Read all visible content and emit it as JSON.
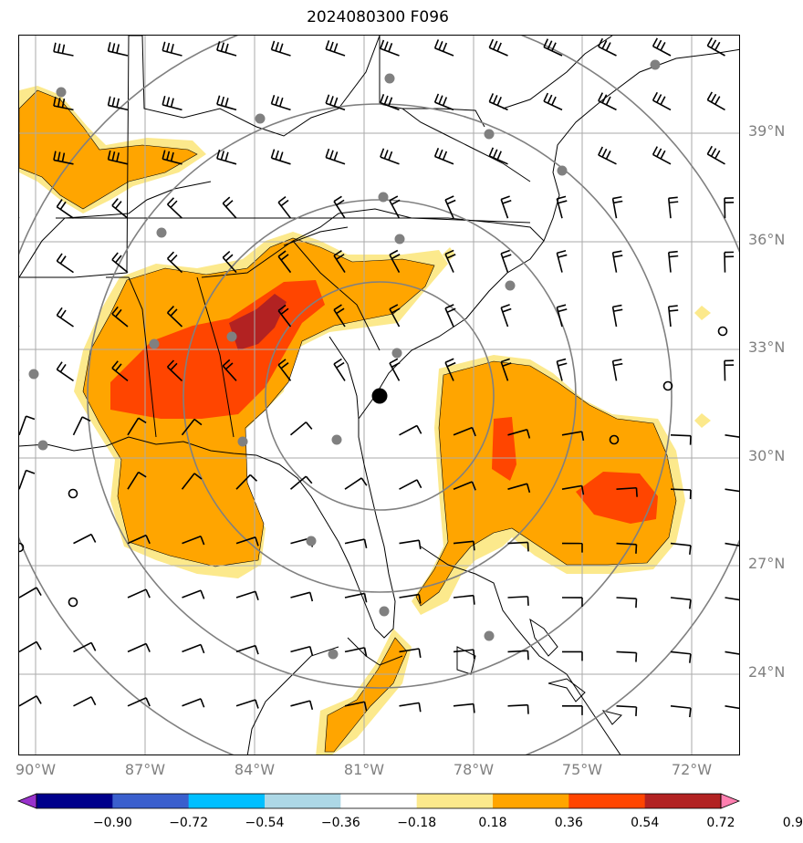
{
  "title": "2024080300 F096",
  "lat_labels": [
    "39°N",
    "36°N",
    "33°N",
    "30°N",
    "27°N",
    "24°N"
  ],
  "lon_labels": [
    "90°W",
    "87°W",
    "84°W",
    "81°W",
    "78°W",
    "75°W",
    "72°W"
  ],
  "colorbar": {
    "tick_labels": [
      "−0.90",
      "−0.72",
      "−0.54",
      "−0.36",
      "−0.18",
      "0.18",
      "0.36",
      "0.54",
      "0.72",
      "0.90"
    ],
    "colors": [
      "#9932cc",
      "#00008b",
      "#3a5fcd",
      "#00bfff",
      "#add8e6",
      "#ffffff",
      "#fce98c",
      "#ffa500",
      "#ff4500",
      "#b22222",
      "#ff7fb0"
    ]
  },
  "map": {
    "type": "filled-contour map with wind barbs",
    "center_marker": "black dot",
    "station_marker": "gray dot",
    "range_rings": 4
  }
}
